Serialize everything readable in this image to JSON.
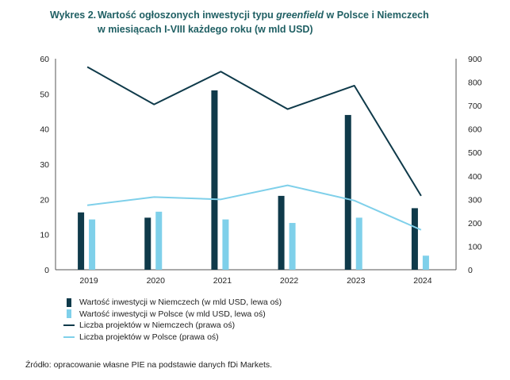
{
  "header": {
    "number": "Wykres 2.",
    "title_part1": "Wartość ogłoszonych inwestycji typu ",
    "title_italic": "greenfield",
    "title_part2": " w Polsce i Niemczech",
    "title_line2": "w miesiącach I-VIII każdego roku (w mld USD)"
  },
  "chart_data": {
    "type": "bar",
    "categories": [
      "2019",
      "2020",
      "2021",
      "2022",
      "2023",
      "2024"
    ],
    "left_axis": {
      "range": [
        0,
        60
      ],
      "ticks": [
        "0",
        "10",
        "20",
        "30",
        "40",
        "50",
        "60"
      ]
    },
    "right_axis": {
      "range": [
        0,
        900
      ],
      "ticks": [
        "0",
        "100",
        "200",
        "300",
        "400",
        "500",
        "600",
        "700",
        "800",
        "900"
      ]
    },
    "series": [
      {
        "name": "Wartość inwestycji w Niemczech (w mld USD, lewa oś)",
        "kind": "bar",
        "axis": "left",
        "color": "#0f3a4a",
        "values": [
          16.3,
          14.8,
          51,
          21,
          44,
          17.5
        ]
      },
      {
        "name": "Wartość inwestycji w Polsce (w mld USD, lewa oś)",
        "kind": "bar",
        "axis": "left",
        "color": "#7fd0ea",
        "values": [
          14.3,
          16.5,
          14.3,
          13.3,
          14.8,
          4
        ]
      },
      {
        "name": "Liczba projektów w Niemczech (prawa oś)",
        "kind": "line",
        "axis": "right",
        "color": "#0f3a4a",
        "values": [
          865,
          705,
          845,
          685,
          785,
          315
        ]
      },
      {
        "name": "Liczba projektów w Polsce (prawa oś)",
        "kind": "line",
        "axis": "right",
        "color": "#7fd0ea",
        "values": [
          275,
          310,
          300,
          360,
          295,
          170
        ]
      }
    ],
    "grid": false,
    "legend": "bottom"
  },
  "source": "Źródło: opracowanie własne PIE na podstawie danych fDi Markets."
}
